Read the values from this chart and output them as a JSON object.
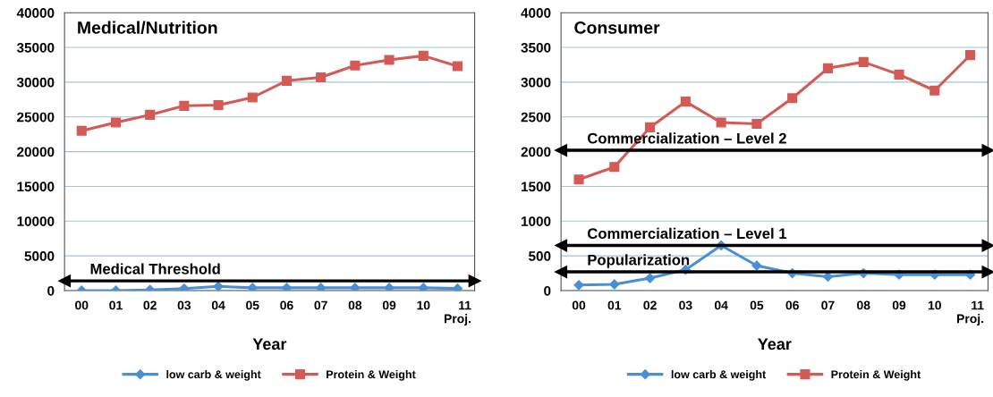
{
  "chart_data": [
    {
      "type": "line",
      "title": "Medical/Nutrition",
      "xlabel": "Year",
      "categories": [
        "00",
        "01",
        "02",
        "03",
        "04",
        "05",
        "06",
        "07",
        "08",
        "09",
        "10",
        "11\nProj."
      ],
      "series": [
        {
          "name": "low carb & weight",
          "color": "#4a8fd6",
          "marker": "diamond",
          "values": [
            0,
            0,
            100,
            300,
            600,
            400,
            400,
            400,
            400,
            400,
            400,
            300
          ]
        },
        {
          "name": "Protein & Weight",
          "color": "#d45a55",
          "marker": "square",
          "values": [
            23000,
            24200,
            25300,
            26600,
            26700,
            27800,
            30200,
            30700,
            32400,
            33200,
            33800,
            32300
          ]
        }
      ],
      "ylim": [
        0,
        40000
      ],
      "yticks": [
        0,
        5000,
        10000,
        15000,
        20000,
        25000,
        30000,
        35000,
        40000
      ],
      "ref_lines": [
        {
          "axis": "y",
          "value": 1400,
          "label": "Medical Threshold",
          "color": "#000000"
        }
      ],
      "grid": "y",
      "legend": "bottom"
    },
    {
      "type": "line",
      "title": "Consumer",
      "xlabel": "Year",
      "categories": [
        "00",
        "01",
        "02",
        "03",
        "04",
        "05",
        "06",
        "07",
        "08",
        "09",
        "10",
        "11\nProj."
      ],
      "series": [
        {
          "name": "low carb & weight",
          "color": "#4a8fd6",
          "marker": "diamond",
          "values": [
            80,
            90,
            180,
            300,
            650,
            360,
            250,
            200,
            250,
            230,
            230,
            230
          ]
        },
        {
          "name": "Protein & Weight",
          "color": "#d45a55",
          "marker": "square",
          "values": [
            1600,
            1780,
            2350,
            2720,
            2420,
            2400,
            2770,
            3200,
            3290,
            3110,
            2880,
            3390
          ]
        }
      ],
      "ylim": [
        0,
        4000
      ],
      "yticks": [
        0,
        500,
        1000,
        1500,
        2000,
        2500,
        3000,
        3500,
        4000
      ],
      "ref_lines": [
        {
          "axis": "y",
          "value": 2020,
          "label": "Commercialization – Level 2",
          "color": "#000000"
        },
        {
          "axis": "y",
          "value": 650,
          "label": "Commercialization – Level 1",
          "color": "#000000"
        },
        {
          "axis": "y",
          "value": 270,
          "label": "Popularization",
          "color": "#000000"
        }
      ],
      "grid": "y",
      "legend": "bottom"
    }
  ]
}
